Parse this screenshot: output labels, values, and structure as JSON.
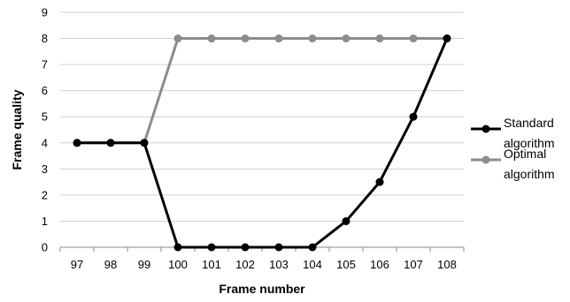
{
  "chart_data": {
    "type": "line",
    "title": "",
    "xlabel": "Frame number",
    "ylabel": "Frame quality",
    "x": [
      "97",
      "98",
      "99",
      "100",
      "101",
      "102",
      "103",
      "104",
      "105",
      "106",
      "107",
      "108"
    ],
    "ylim": [
      0,
      9
    ],
    "yticks": [
      "0",
      "1",
      "2",
      "3",
      "4",
      "5",
      "6",
      "7",
      "8",
      "9"
    ],
    "grid": "horizontal",
    "legend_position": "right",
    "series": [
      {
        "name_lines": [
          "Standard",
          "algorithm"
        ],
        "color": "#000000",
        "values": [
          4,
          4,
          4,
          0,
          0,
          0,
          0,
          0,
          1,
          2.5,
          5,
          8
        ]
      },
      {
        "name_lines": [
          "Optimal",
          "algorithm"
        ],
        "color": "#8c8c8c",
        "values": [
          4,
          4,
          4,
          8,
          8,
          8,
          8,
          8,
          8,
          8,
          8,
          8
        ]
      }
    ]
  }
}
